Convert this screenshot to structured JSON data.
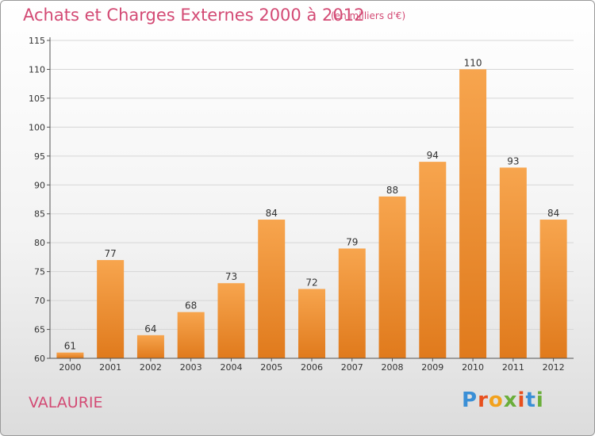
{
  "header": {
    "title": "Achats et Charges Externes 2000 à 2012",
    "unit": "(en milliers d'€)"
  },
  "footer": {
    "commune": "VALAURIE",
    "logo": "Proxiti",
    "logo_colors": [
      "#3a8fd6",
      "#e8501e",
      "#f2a11c",
      "#6aae3a",
      "#e8501e",
      "#3a8fd6",
      "#6aae3a"
    ]
  },
  "colors": {
    "bar_top": "#f7a54e",
    "bar_bottom": "#e07a1c",
    "text_accent": "#d34a74"
  },
  "chart_data": {
    "type": "bar",
    "categories": [
      "2000",
      "2001",
      "2002",
      "2003",
      "2004",
      "2005",
      "2006",
      "2007",
      "2008",
      "2009",
      "2010",
      "2011",
      "2012"
    ],
    "values": [
      61,
      77,
      64,
      68,
      73,
      84,
      72,
      79,
      88,
      94,
      110,
      93,
      84
    ],
    "ylim": [
      60,
      115
    ],
    "yticks": [
      60,
      65,
      70,
      75,
      80,
      85,
      90,
      95,
      100,
      105,
      110,
      115
    ],
    "grid": true
  }
}
